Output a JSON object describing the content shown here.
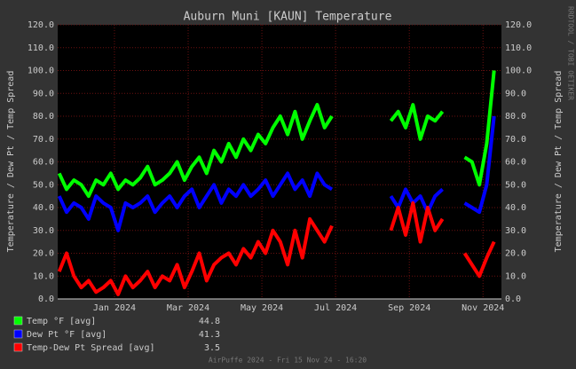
{
  "chart_data": {
    "type": "line",
    "title": "Auburn Muni [KAUN] Temperature",
    "y_label": "Temperature / Dew Pt / Temp Spread",
    "side_label": "RRDTOOL / TOBI OETIKER",
    "footer": "AirPuffe 2024 - Fri 15 Nov 24 - 16:20",
    "xlim": [
      -0.54,
      11.5
    ],
    "xticks": [
      {
        "value": 1,
        "label": "Jan 2024"
      },
      {
        "value": 3,
        "label": "Mar 2024"
      },
      {
        "value": 5,
        "label": "May 2024"
      },
      {
        "value": 7,
        "label": "Jul 2024"
      },
      {
        "value": 9,
        "label": "Sep 2024"
      },
      {
        "value": 11,
        "label": "Nov 2024"
      }
    ],
    "ylim": [
      0,
      120
    ],
    "yticks": [
      {
        "value": 0,
        "label": "0.0"
      },
      {
        "value": 10,
        "label": "10.0"
      },
      {
        "value": 20,
        "label": "20.0"
      },
      {
        "value": 30,
        "label": "30.0"
      },
      {
        "value": 40,
        "label": "40.0"
      },
      {
        "value": 50,
        "label": "50.0"
      },
      {
        "value": 60,
        "label": "60.0"
      },
      {
        "value": 70,
        "label": "70.0"
      },
      {
        "value": 80,
        "label": "80.0"
      },
      {
        "value": 90,
        "label": "90.0"
      },
      {
        "value": 100,
        "label": "100.0"
      },
      {
        "value": 110,
        "label": "110.0"
      },
      {
        "value": 120,
        "label": "120.0"
      }
    ],
    "grid": true,
    "x": [
      -0.5,
      -0.3,
      -0.1,
      0.1,
      0.3,
      0.5,
      0.7,
      0.9,
      1.1,
      1.3,
      1.5,
      1.7,
      1.9,
      2.1,
      2.3,
      2.5,
      2.7,
      2.9,
      3.1,
      3.3,
      3.5,
      3.7,
      3.9,
      4.1,
      4.3,
      4.5,
      4.7,
      4.9,
      5.1,
      5.3,
      5.5,
      5.7,
      5.9,
      6.1,
      6.3,
      6.5,
      6.7,
      6.9,
      7.1,
      7.3,
      7.5,
      7.7,
      7.9,
      8.1,
      8.3,
      8.5,
      8.7,
      8.9,
      9.1,
      9.3,
      9.5,
      9.7,
      9.9,
      10.1,
      10.3,
      10.5,
      10.7,
      10.9,
      11.1,
      11.3
    ],
    "series": [
      {
        "name": "Temp °F [avg]",
        "avg": 44.8,
        "color": "#00ff00",
        "values": [
          55,
          48,
          52,
          50,
          45,
          52,
          50,
          55,
          48,
          52,
          50,
          53,
          58,
          50,
          52,
          55,
          60,
          52,
          58,
          62,
          55,
          65,
          60,
          68,
          62,
          70,
          65,
          72,
          68,
          75,
          80,
          72,
          82,
          70,
          78,
          85,
          75,
          80,
          null,
          null,
          null,
          null,
          null,
          null,
          null,
          78,
          82,
          75,
          85,
          70,
          80,
          78,
          82,
          null,
          null,
          62,
          60,
          50,
          68,
          100
        ]
      },
      {
        "name": "Dew Pt °F [avg]",
        "avg": 41.3,
        "color": "#0000ff",
        "values": [
          45,
          38,
          42,
          40,
          35,
          45,
          42,
          40,
          30,
          42,
          40,
          42,
          45,
          38,
          42,
          45,
          40,
          45,
          48,
          40,
          45,
          50,
          42,
          48,
          45,
          50,
          45,
          48,
          52,
          45,
          50,
          55,
          48,
          52,
          45,
          55,
          50,
          48,
          null,
          null,
          null,
          null,
          null,
          null,
          null,
          45,
          40,
          48,
          42,
          45,
          38,
          45,
          48,
          null,
          null,
          42,
          40,
          38,
          50,
          80
        ]
      },
      {
        "name": "Temp-Dew Pt Spread [avg]",
        "avg": 3.5,
        "color": "#ff0000",
        "values": [
          12,
          20,
          10,
          5,
          8,
          3,
          5,
          8,
          2,
          10,
          5,
          8,
          12,
          5,
          10,
          8,
          15,
          5,
          12,
          20,
          8,
          15,
          18,
          20,
          15,
          22,
          18,
          25,
          20,
          30,
          25,
          15,
          30,
          18,
          35,
          30,
          25,
          32,
          null,
          null,
          null,
          null,
          null,
          null,
          null,
          30,
          40,
          28,
          42,
          25,
          40,
          30,
          35,
          null,
          null,
          20,
          15,
          10,
          18,
          25
        ]
      }
    ]
  }
}
